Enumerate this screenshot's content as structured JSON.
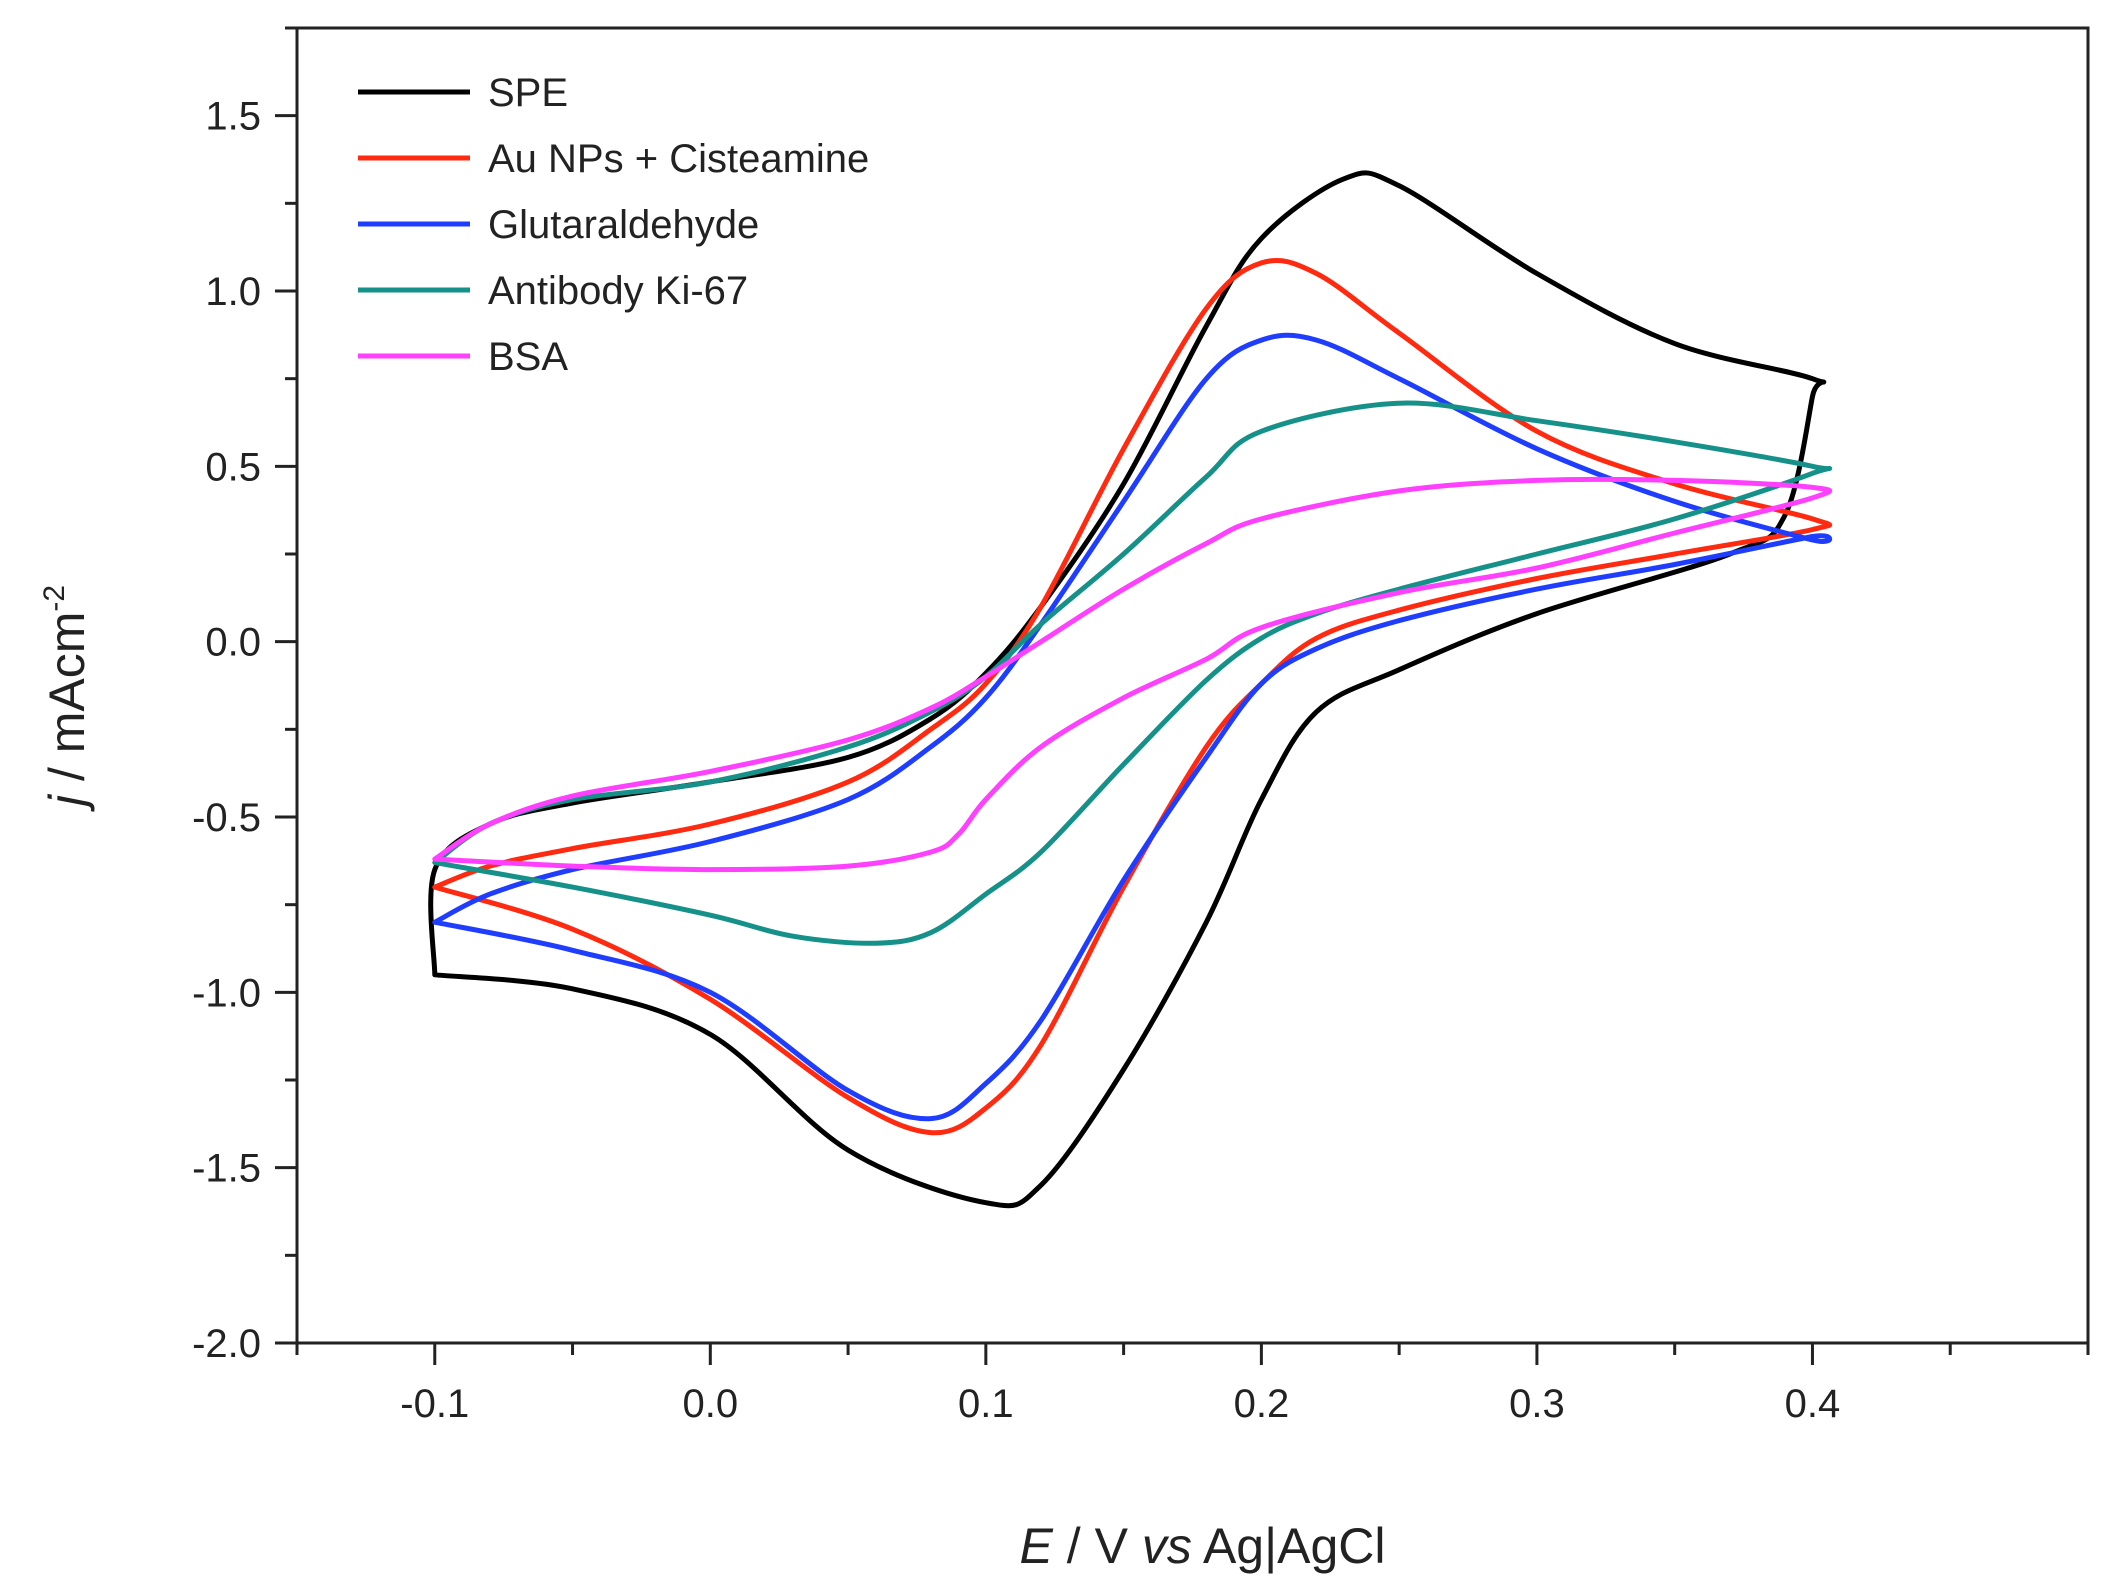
{
  "chart_data": {
    "type": "line",
    "title": "",
    "xlabel": {
      "italic": "E",
      "middle": " / V ",
      "italic2": "vs",
      "rest": " Ag|AgCl"
    },
    "ylabel": {
      "italic": "j",
      "rest": " / mAcm",
      "sup": "-2"
    },
    "xlim": [
      -0.15,
      0.5
    ],
    "ylim": [
      -2.0,
      1.75
    ],
    "xticks": [
      -0.1,
      0.0,
      0.1,
      0.2,
      0.3,
      0.4
    ],
    "xtick_labels": [
      "-0.1",
      "0.0",
      "0.1",
      "0.2",
      "0.3",
      "0.4"
    ],
    "yticks": [
      -2.0,
      -1.5,
      -1.0,
      -0.5,
      0.0,
      0.5,
      1.0,
      1.5
    ],
    "ytick_labels": [
      "-2.0",
      "-1.5",
      "-1.0",
      "-0.5",
      "0.0",
      "0.5",
      "1.0",
      "1.5"
    ],
    "legend_position": "top-left",
    "grid": false,
    "series": [
      {
        "name": "SPE",
        "color": "#000000",
        "points": [
          [
            -0.1,
            -0.95
          ],
          [
            -0.1,
            -0.65
          ],
          [
            -0.08,
            -0.52
          ],
          [
            -0.05,
            -0.46
          ],
          [
            0.0,
            -0.4
          ],
          [
            0.05,
            -0.33
          ],
          [
            0.08,
            -0.22
          ],
          [
            0.1,
            -0.09
          ],
          [
            0.12,
            0.1
          ],
          [
            0.15,
            0.45
          ],
          [
            0.18,
            0.9
          ],
          [
            0.2,
            1.15
          ],
          [
            0.23,
            1.32
          ],
          [
            0.25,
            1.3
          ],
          [
            0.3,
            1.05
          ],
          [
            0.35,
            0.85
          ],
          [
            0.4,
            0.75
          ],
          [
            0.4,
            0.7
          ],
          [
            0.39,
            0.36
          ],
          [
            0.37,
            0.25
          ],
          [
            0.3,
            0.08
          ],
          [
            0.25,
            -0.08
          ],
          [
            0.22,
            -0.2
          ],
          [
            0.2,
            -0.45
          ],
          [
            0.18,
            -0.8
          ],
          [
            0.15,
            -1.22
          ],
          [
            0.12,
            -1.55
          ],
          [
            0.1,
            -1.6
          ],
          [
            0.05,
            -1.45
          ],
          [
            0.0,
            -1.12
          ],
          [
            -0.05,
            -0.99
          ],
          [
            -0.1,
            -0.95
          ]
        ]
      },
      {
        "name": "Au NPs + Cisteamine",
        "color": "#ff2a10",
        "points": [
          [
            -0.1,
            -0.7
          ],
          [
            -0.08,
            -0.64
          ],
          [
            -0.05,
            -0.59
          ],
          [
            0.0,
            -0.52
          ],
          [
            0.05,
            -0.4
          ],
          [
            0.08,
            -0.25
          ],
          [
            0.1,
            -0.12
          ],
          [
            0.12,
            0.1
          ],
          [
            0.15,
            0.55
          ],
          [
            0.18,
            0.95
          ],
          [
            0.2,
            1.08
          ],
          [
            0.22,
            1.05
          ],
          [
            0.25,
            0.88
          ],
          [
            0.3,
            0.6
          ],
          [
            0.35,
            0.45
          ],
          [
            0.4,
            0.35
          ],
          [
            0.4,
            0.32
          ],
          [
            0.35,
            0.25
          ],
          [
            0.3,
            0.18
          ],
          [
            0.25,
            0.09
          ],
          [
            0.22,
            0.01
          ],
          [
            0.2,
            -0.12
          ],
          [
            0.18,
            -0.3
          ],
          [
            0.15,
            -0.7
          ],
          [
            0.12,
            -1.15
          ],
          [
            0.1,
            -1.33
          ],
          [
            0.08,
            -1.4
          ],
          [
            0.05,
            -1.3
          ],
          [
            0.0,
            -1.02
          ],
          [
            -0.05,
            -0.82
          ],
          [
            -0.1,
            -0.7
          ]
        ]
      },
      {
        "name": "Glutaraldehyde",
        "color": "#1f3dff",
        "points": [
          [
            -0.1,
            -0.8
          ],
          [
            -0.08,
            -0.72
          ],
          [
            -0.05,
            -0.65
          ],
          [
            0.0,
            -0.57
          ],
          [
            0.05,
            -0.45
          ],
          [
            0.08,
            -0.3
          ],
          [
            0.1,
            -0.16
          ],
          [
            0.12,
            0.05
          ],
          [
            0.15,
            0.4
          ],
          [
            0.18,
            0.75
          ],
          [
            0.2,
            0.86
          ],
          [
            0.22,
            0.86
          ],
          [
            0.25,
            0.75
          ],
          [
            0.3,
            0.55
          ],
          [
            0.35,
            0.4
          ],
          [
            0.4,
            0.29
          ],
          [
            0.4,
            0.3
          ],
          [
            0.35,
            0.22
          ],
          [
            0.3,
            0.15
          ],
          [
            0.25,
            0.06
          ],
          [
            0.22,
            -0.02
          ],
          [
            0.2,
            -0.12
          ],
          [
            0.18,
            -0.33
          ],
          [
            0.15,
            -0.68
          ],
          [
            0.12,
            -1.08
          ],
          [
            0.1,
            -1.26
          ],
          [
            0.08,
            -1.36
          ],
          [
            0.05,
            -1.28
          ],
          [
            0.0,
            -1.0
          ],
          [
            -0.05,
            -0.88
          ],
          [
            -0.1,
            -0.8
          ]
        ]
      },
      {
        "name": "Antibody Ki-67",
        "color": "#16918a",
        "points": [
          [
            -0.1,
            -0.63
          ],
          [
            -0.08,
            -0.52
          ],
          [
            -0.05,
            -0.45
          ],
          [
            0.0,
            -0.4
          ],
          [
            0.05,
            -0.3
          ],
          [
            0.08,
            -0.2
          ],
          [
            0.1,
            -0.1
          ],
          [
            0.12,
            0.05
          ],
          [
            0.15,
            0.25
          ],
          [
            0.18,
            0.47
          ],
          [
            0.2,
            0.6
          ],
          [
            0.25,
            0.68
          ],
          [
            0.3,
            0.63
          ],
          [
            0.35,
            0.57
          ],
          [
            0.4,
            0.5
          ],
          [
            0.4,
            0.48
          ],
          [
            0.35,
            0.35
          ],
          [
            0.3,
            0.25
          ],
          [
            0.25,
            0.15
          ],
          [
            0.22,
            0.08
          ],
          [
            0.2,
            0.01
          ],
          [
            0.18,
            -0.11
          ],
          [
            0.15,
            -0.35
          ],
          [
            0.12,
            -0.6
          ],
          [
            0.1,
            -0.72
          ],
          [
            0.08,
            -0.83
          ],
          [
            0.06,
            -0.86
          ],
          [
            0.03,
            -0.84
          ],
          [
            0.0,
            -0.78
          ],
          [
            -0.05,
            -0.7
          ],
          [
            -0.1,
            -0.63
          ]
        ]
      },
      {
        "name": "BSA",
        "color": "#ff40ff",
        "points": [
          [
            -0.1,
            -0.62
          ],
          [
            -0.08,
            -0.52
          ],
          [
            -0.05,
            -0.44
          ],
          [
            0.0,
            -0.37
          ],
          [
            0.05,
            -0.28
          ],
          [
            0.08,
            -0.19
          ],
          [
            0.1,
            -0.1
          ],
          [
            0.12,
            0.0
          ],
          [
            0.15,
            0.15
          ],
          [
            0.18,
            0.28
          ],
          [
            0.2,
            0.35
          ],
          [
            0.25,
            0.43
          ],
          [
            0.3,
            0.46
          ],
          [
            0.35,
            0.46
          ],
          [
            0.4,
            0.44
          ],
          [
            0.4,
            0.41
          ],
          [
            0.35,
            0.31
          ],
          [
            0.3,
            0.21
          ],
          [
            0.25,
            0.14
          ],
          [
            0.2,
            0.04
          ],
          [
            0.18,
            -0.05
          ],
          [
            0.15,
            -0.16
          ],
          [
            0.12,
            -0.3
          ],
          [
            0.1,
            -0.45
          ],
          [
            0.09,
            -0.55
          ],
          [
            0.08,
            -0.6
          ],
          [
            0.05,
            -0.64
          ],
          [
            0.0,
            -0.65
          ],
          [
            -0.05,
            -0.64
          ],
          [
            -0.1,
            -0.62
          ]
        ]
      }
    ]
  }
}
